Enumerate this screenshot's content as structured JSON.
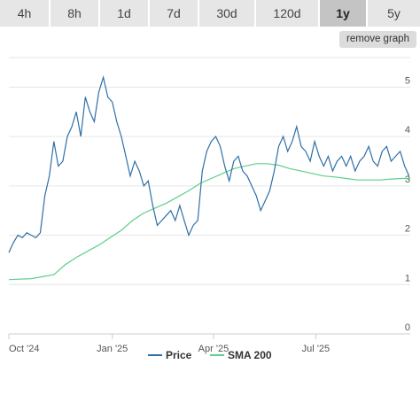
{
  "timeframes": {
    "items": [
      {
        "label": "4h",
        "active": false
      },
      {
        "label": "8h",
        "active": false
      },
      {
        "label": "1d",
        "active": false
      },
      {
        "label": "7d",
        "active": false
      },
      {
        "label": "30d",
        "active": false
      },
      {
        "label": "120d",
        "active": false
      },
      {
        "label": "1y",
        "active": true
      },
      {
        "label": "5y",
        "active": false
      }
    ]
  },
  "remove_graph_label": "remove graph",
  "chart_data": {
    "type": "line",
    "x_tick_labels": [
      "Oct '24",
      "Jan '25",
      "Apr '25",
      "Jul '25"
    ],
    "x_ticks_days": [
      0,
      92,
      182,
      273
    ],
    "y_ticks": [
      0,
      1,
      2,
      3,
      4,
      5
    ],
    "ylim": [
      0,
      5.6
    ],
    "xlim_days": [
      0,
      357
    ],
    "grid": true,
    "legend_position": "bottom",
    "colors": {
      "price": "#2f6fa5",
      "sma": "#5ccf8a"
    },
    "series": [
      {
        "name": "Price",
        "key": "price",
        "x": [
          0,
          4,
          8,
          12,
          16,
          20,
          24,
          28,
          32,
          36,
          40,
          44,
          48,
          52,
          56,
          60,
          64,
          68,
          72,
          76,
          80,
          84,
          88,
          92,
          96,
          100,
          104,
          108,
          112,
          116,
          120,
          124,
          128,
          132,
          136,
          140,
          144,
          148,
          152,
          156,
          160,
          164,
          168,
          172,
          176,
          180,
          184,
          188,
          192,
          196,
          200,
          204,
          208,
          212,
          216,
          220,
          224,
          228,
          232,
          236,
          240,
          244,
          248,
          252,
          256,
          260,
          264,
          268,
          272,
          276,
          280,
          284,
          288,
          292,
          296,
          300,
          304,
          308,
          312,
          316,
          320,
          324,
          328,
          332,
          336,
          340,
          344,
          348,
          352,
          356
        ],
        "values": [
          1.65,
          1.85,
          2.0,
          1.95,
          2.05,
          2.0,
          1.95,
          2.05,
          2.8,
          3.2,
          3.9,
          3.4,
          3.5,
          4.0,
          4.2,
          4.5,
          4.0,
          4.8,
          4.5,
          4.3,
          4.9,
          5.2,
          4.8,
          4.7,
          4.3,
          4.0,
          3.6,
          3.2,
          3.5,
          3.3,
          3.0,
          3.1,
          2.6,
          2.2,
          2.3,
          2.4,
          2.5,
          2.3,
          2.6,
          2.3,
          2.0,
          2.2,
          2.3,
          3.3,
          3.7,
          3.9,
          4.0,
          3.8,
          3.4,
          3.1,
          3.5,
          3.6,
          3.3,
          3.2,
          3.0,
          2.8,
          2.5,
          2.7,
          2.9,
          3.3,
          3.8,
          4.0,
          3.7,
          3.9,
          4.2,
          3.8,
          3.7,
          3.5,
          3.9,
          3.6,
          3.4,
          3.6,
          3.3,
          3.5,
          3.6,
          3.4,
          3.6,
          3.3,
          3.5,
          3.6,
          3.8,
          3.5,
          3.4,
          3.7,
          3.8,
          3.5,
          3.6,
          3.7,
          3.4,
          3.2
        ]
      },
      {
        "name": "SMA 200",
        "key": "sma",
        "x": [
          0,
          20,
          40,
          50,
          60,
          80,
          100,
          110,
          120,
          140,
          160,
          170,
          180,
          190,
          200,
          210,
          220,
          230,
          240,
          250,
          260,
          270,
          280,
          290,
          300,
          310,
          320,
          330,
          340,
          350,
          357
        ],
        "values": [
          1.1,
          1.12,
          1.2,
          1.4,
          1.55,
          1.8,
          2.1,
          2.3,
          2.45,
          2.65,
          2.9,
          3.05,
          3.15,
          3.25,
          3.35,
          3.4,
          3.45,
          3.45,
          3.42,
          3.35,
          3.3,
          3.25,
          3.2,
          3.18,
          3.15,
          3.12,
          3.12,
          3.12,
          3.14,
          3.15,
          3.15
        ]
      }
    ]
  }
}
